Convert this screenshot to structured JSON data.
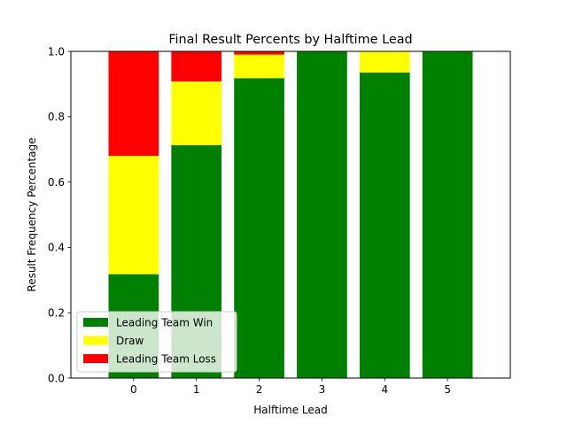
{
  "chart_data": {
    "type": "bar",
    "stacked": true,
    "title": "Final Result Percents by Halftime Lead",
    "xlabel": "Halftime Lead",
    "ylabel": "Result Frequency Percentage",
    "categories": [
      "0",
      "1",
      "2",
      "3",
      "4",
      "5"
    ],
    "xlim": [
      -1,
      6
    ],
    "ylim": [
      0,
      1.0
    ],
    "yticks": [
      "0.0",
      "0.2",
      "0.4",
      "0.6",
      "0.8",
      "1.0"
    ],
    "grid": false,
    "legend_position": "lower-left",
    "series": [
      {
        "name": "Leading Team Win",
        "color": "#008000",
        "values": [
          0.318,
          0.713,
          0.918,
          1.0,
          0.935,
          1.0
        ]
      },
      {
        "name": "Draw",
        "color": "#ffff00",
        "values": [
          0.362,
          0.195,
          0.072,
          0.0,
          0.065,
          0.0
        ]
      },
      {
        "name": "Leading Team Loss",
        "color": "#ff0000",
        "values": [
          0.32,
          0.092,
          0.01,
          0.0,
          0.0,
          0.0
        ]
      }
    ]
  }
}
